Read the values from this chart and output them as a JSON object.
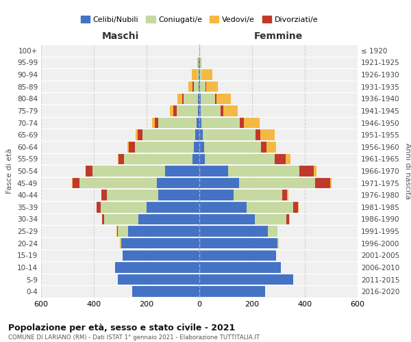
{
  "age_groups": [
    "0-4",
    "5-9",
    "10-14",
    "15-19",
    "20-24",
    "25-29",
    "30-34",
    "35-39",
    "40-44",
    "45-49",
    "50-54",
    "55-59",
    "60-64",
    "65-69",
    "70-74",
    "75-79",
    "80-84",
    "85-89",
    "90-94",
    "95-99",
    "100+"
  ],
  "birth_years": [
    "2016-2020",
    "2011-2015",
    "2006-2010",
    "2001-2005",
    "1996-2000",
    "1991-1995",
    "1986-1990",
    "1981-1985",
    "1976-1980",
    "1971-1975",
    "1966-1970",
    "1961-1965",
    "1956-1960",
    "1951-1955",
    "1946-1950",
    "1941-1945",
    "1936-1940",
    "1931-1935",
    "1926-1930",
    "1921-1925",
    "≤ 1920"
  ],
  "male_celibi": [
    255,
    310,
    320,
    290,
    295,
    270,
    230,
    200,
    155,
    160,
    130,
    25,
    20,
    15,
    10,
    5,
    5,
    3,
    2,
    2,
    0
  ],
  "male_coniugati": [
    0,
    0,
    0,
    2,
    5,
    40,
    130,
    175,
    195,
    295,
    275,
    260,
    225,
    200,
    145,
    80,
    55,
    18,
    6,
    3,
    0
  ],
  "male_vedovi": [
    0,
    0,
    0,
    0,
    2,
    3,
    0,
    0,
    0,
    2,
    2,
    3,
    5,
    8,
    10,
    12,
    18,
    15,
    20,
    2,
    0
  ],
  "male_divorziati": [
    0,
    0,
    0,
    0,
    0,
    2,
    10,
    15,
    22,
    25,
    25,
    22,
    22,
    18,
    15,
    15,
    5,
    5,
    0,
    0,
    0
  ],
  "female_celibi": [
    250,
    355,
    310,
    290,
    295,
    260,
    210,
    180,
    130,
    150,
    110,
    22,
    18,
    12,
    8,
    5,
    5,
    3,
    2,
    2,
    0
  ],
  "female_coniugati": [
    0,
    0,
    0,
    2,
    5,
    35,
    120,
    175,
    185,
    290,
    270,
    265,
    215,
    200,
    145,
    75,
    55,
    20,
    8,
    2,
    0
  ],
  "female_vedovi": [
    0,
    0,
    0,
    0,
    0,
    0,
    2,
    3,
    5,
    5,
    10,
    18,
    35,
    55,
    60,
    55,
    55,
    45,
    40,
    5,
    2
  ],
  "female_divorziati": [
    0,
    0,
    0,
    0,
    0,
    2,
    10,
    18,
    18,
    55,
    55,
    40,
    22,
    18,
    15,
    10,
    5,
    3,
    0,
    0,
    0
  ],
  "colors": {
    "celibi": "#4472c4",
    "coniugati": "#c5d9a0",
    "vedovi": "#f4b942",
    "divorziati": "#c0392b"
  },
  "title": "Popolazione per età, sesso e stato civile - 2021",
  "subtitle": "COMUNE DI LARIANO (RM) - Dati ISTAT 1° gennaio 2021 - Elaborazione TUTTITALIA.IT",
  "xlabel_left": "Maschi",
  "xlabel_right": "Femmine",
  "ylabel_left": "Fasce di età",
  "ylabel_right": "Anni di nascita",
  "legend_labels": [
    "Celibi/Nubili",
    "Coniugati/e",
    "Vedovi/e",
    "Divorziati/e"
  ],
  "xlim": 600,
  "background_color": "#ffffff",
  "plot_bg_color": "#f0f0f0"
}
